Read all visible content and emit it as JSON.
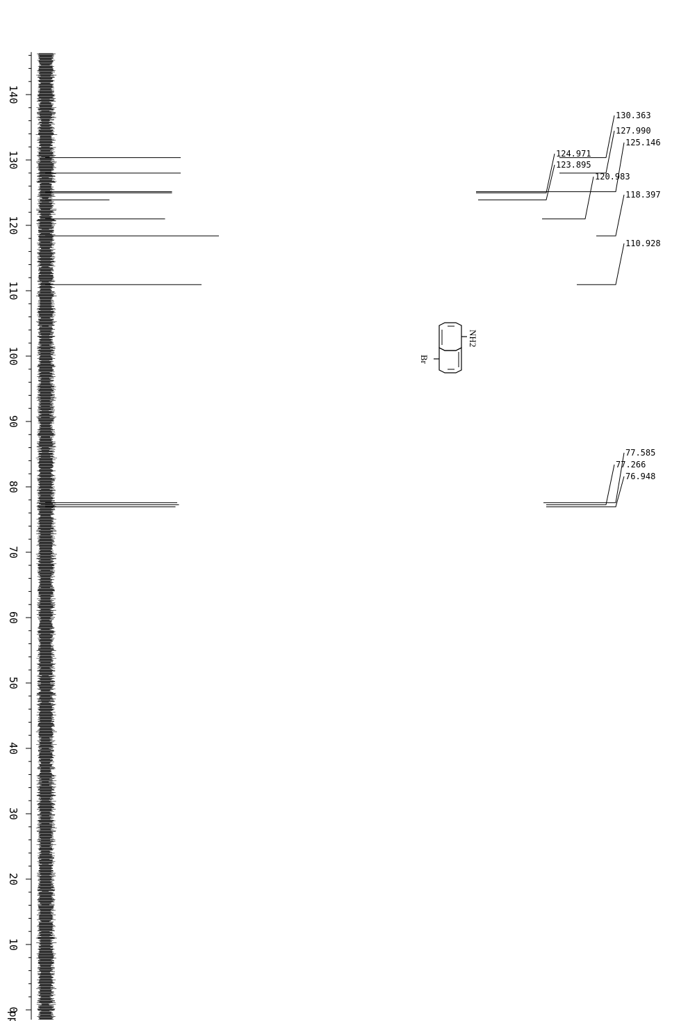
{
  "chart_data": {
    "type": "line",
    "axis": {
      "unit_label": "ppm",
      "range": [
        -1.5,
        146.5
      ],
      "major_ticks": [
        0,
        10,
        20,
        30,
        40,
        50,
        60,
        70,
        80,
        90,
        100,
        110,
        120,
        130,
        140
      ],
      "tick_labels": [
        "0",
        "10",
        "20",
        "30",
        "40",
        "50",
        "60",
        "70",
        "80",
        "90",
        "100",
        "110",
        "120",
        "130",
        "140"
      ],
      "minor_step": 2
    },
    "peaks": [
      {
        "ppm": 130.363,
        "intensity": 0.78
      },
      {
        "ppm": 127.99,
        "intensity": 0.78
      },
      {
        "ppm": 125.146,
        "intensity": 0.73
      },
      {
        "ppm": 124.971,
        "intensity": 0.73
      },
      {
        "ppm": 123.895,
        "intensity": 0.37
      },
      {
        "ppm": 120.983,
        "intensity": 0.69
      },
      {
        "ppm": 118.397,
        "intensity": 1.0
      },
      {
        "ppm": 110.928,
        "intensity": 0.9
      },
      {
        "ppm": 77.585,
        "intensity": 0.76
      },
      {
        "ppm": 77.266,
        "intensity": 0.77
      },
      {
        "ppm": 76.948,
        "intensity": 0.75
      }
    ],
    "peak_labels": [
      "130.363",
      "127.990",
      "125.146",
      "124.971",
      "123.895",
      "120.983",
      "118.397",
      "110.928",
      "77.585",
      "77.266",
      "76.948"
    ],
    "molecule": {
      "substituent_top": "NH2",
      "substituent_bottom": "Br"
    }
  }
}
